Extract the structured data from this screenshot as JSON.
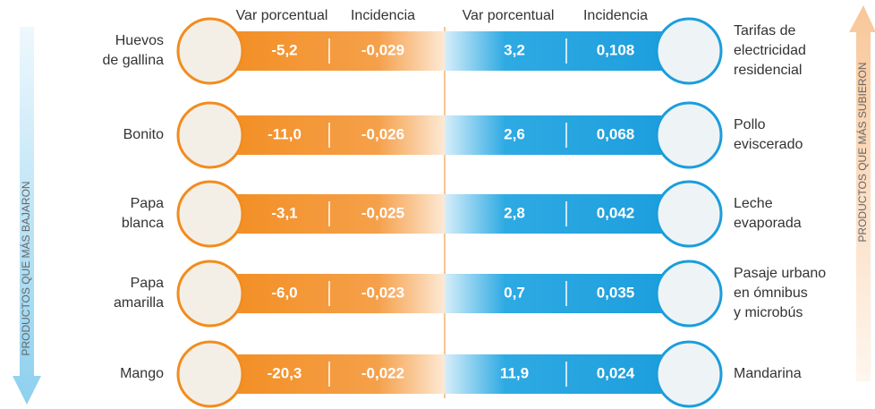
{
  "headers": {
    "left": [
      "Var porcentual",
      "Incidencia"
    ],
    "right": [
      "Var porcentual",
      "Incidencia"
    ]
  },
  "left_label": "PRODUCTOS QUE MÁS BAJARON",
  "right_label": "PRODUCTOS QUE MÁS SUBIERON",
  "down": [
    {
      "name": [
        "Huevos",
        "de gallina"
      ],
      "var": "-5,2",
      "incidencia": "-0,029"
    },
    {
      "name": [
        "Bonito"
      ],
      "var": "-11,0",
      "incidencia": "-0,026"
    },
    {
      "name": [
        "Papa",
        "blanca"
      ],
      "var": "-3,1",
      "incidencia": "-0,025"
    },
    {
      "name": [
        "Papa",
        "amarilla"
      ],
      "var": "-6,0",
      "incidencia": "-0,023"
    },
    {
      "name": [
        "Mango"
      ],
      "var": "-20,3",
      "incidencia": "-0,022"
    }
  ],
  "up": [
    {
      "name": [
        "Tarifas de",
        "electricidad",
        "residencial"
      ],
      "var": "3,2",
      "incidencia": "0,108"
    },
    {
      "name": [
        "Pollo",
        "eviscerado"
      ],
      "var": "2,6",
      "incidencia": "0,068"
    },
    {
      "name": [
        "Leche",
        "evaporada"
      ],
      "var": "2,8",
      "incidencia": "0,042"
    },
    {
      "name": [
        "Pasaje urbano",
        "en ómnibus",
        "y microbús"
      ],
      "var": "0,7",
      "incidencia": "0,035"
    },
    {
      "name": [
        "Mandarina"
      ],
      "var": "11,9",
      "incidencia": "0,024"
    }
  ]
}
